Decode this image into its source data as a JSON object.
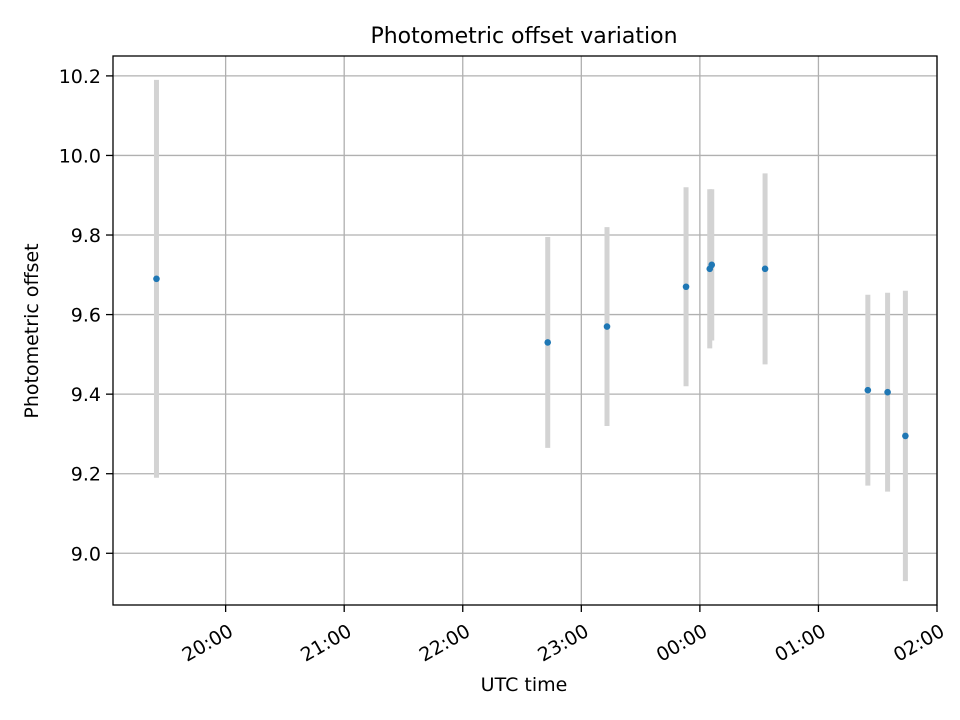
{
  "chart_data": {
    "type": "scatter",
    "title": "Photometric offset variation",
    "xlabel": "UTC time",
    "ylabel": "Photometric offset",
    "x_unit": "UTC time (HH:MM)",
    "xlim": [
      "19:03",
      "02:00"
    ],
    "ylim": [
      8.87,
      10.25
    ],
    "x_ticks": [
      {
        "time": "20:00",
        "label": "20:00"
      },
      {
        "time": "21:00",
        "label": "21:00"
      },
      {
        "time": "22:00",
        "label": "22:00"
      },
      {
        "time": "23:00",
        "label": "23:00"
      },
      {
        "time": "00:00",
        "label": "00:00"
      },
      {
        "time": "01:00",
        "label": "01:00"
      },
      {
        "time": "02:00",
        "label": "02:00"
      }
    ],
    "y_ticks": [
      9.0,
      9.2,
      9.4,
      9.6,
      9.8,
      10.0,
      10.2
    ],
    "y_tick_labels": [
      "9.0",
      "9.2",
      "9.4",
      "9.6",
      "9.8",
      "10.0",
      "10.2"
    ],
    "grid": true,
    "legend": "none",
    "points": [
      {
        "time": "19:25",
        "y": 9.69,
        "err": 0.5
      },
      {
        "time": "22:43",
        "y": 9.53,
        "err": 0.265
      },
      {
        "time": "23:13",
        "y": 9.57,
        "err": 0.25
      },
      {
        "time": "23:53",
        "y": 9.67,
        "err": 0.25
      },
      {
        "time": "00:05",
        "y": 9.715,
        "err": 0.2
      },
      {
        "time": "00:06",
        "y": 9.725,
        "err": 0.19
      },
      {
        "time": "00:33",
        "y": 9.715,
        "err": 0.24
      },
      {
        "time": "01:25",
        "y": 9.41,
        "err": 0.24
      },
      {
        "time": "01:35",
        "y": 9.405,
        "err": 0.25
      },
      {
        "time": "01:44",
        "y": 9.295,
        "err": 0.365
      }
    ],
    "colors": {
      "point": "#1f77b4",
      "errorbar": "#d3d3d3",
      "grid": "#b0b0b0",
      "axes": "#000000"
    }
  }
}
